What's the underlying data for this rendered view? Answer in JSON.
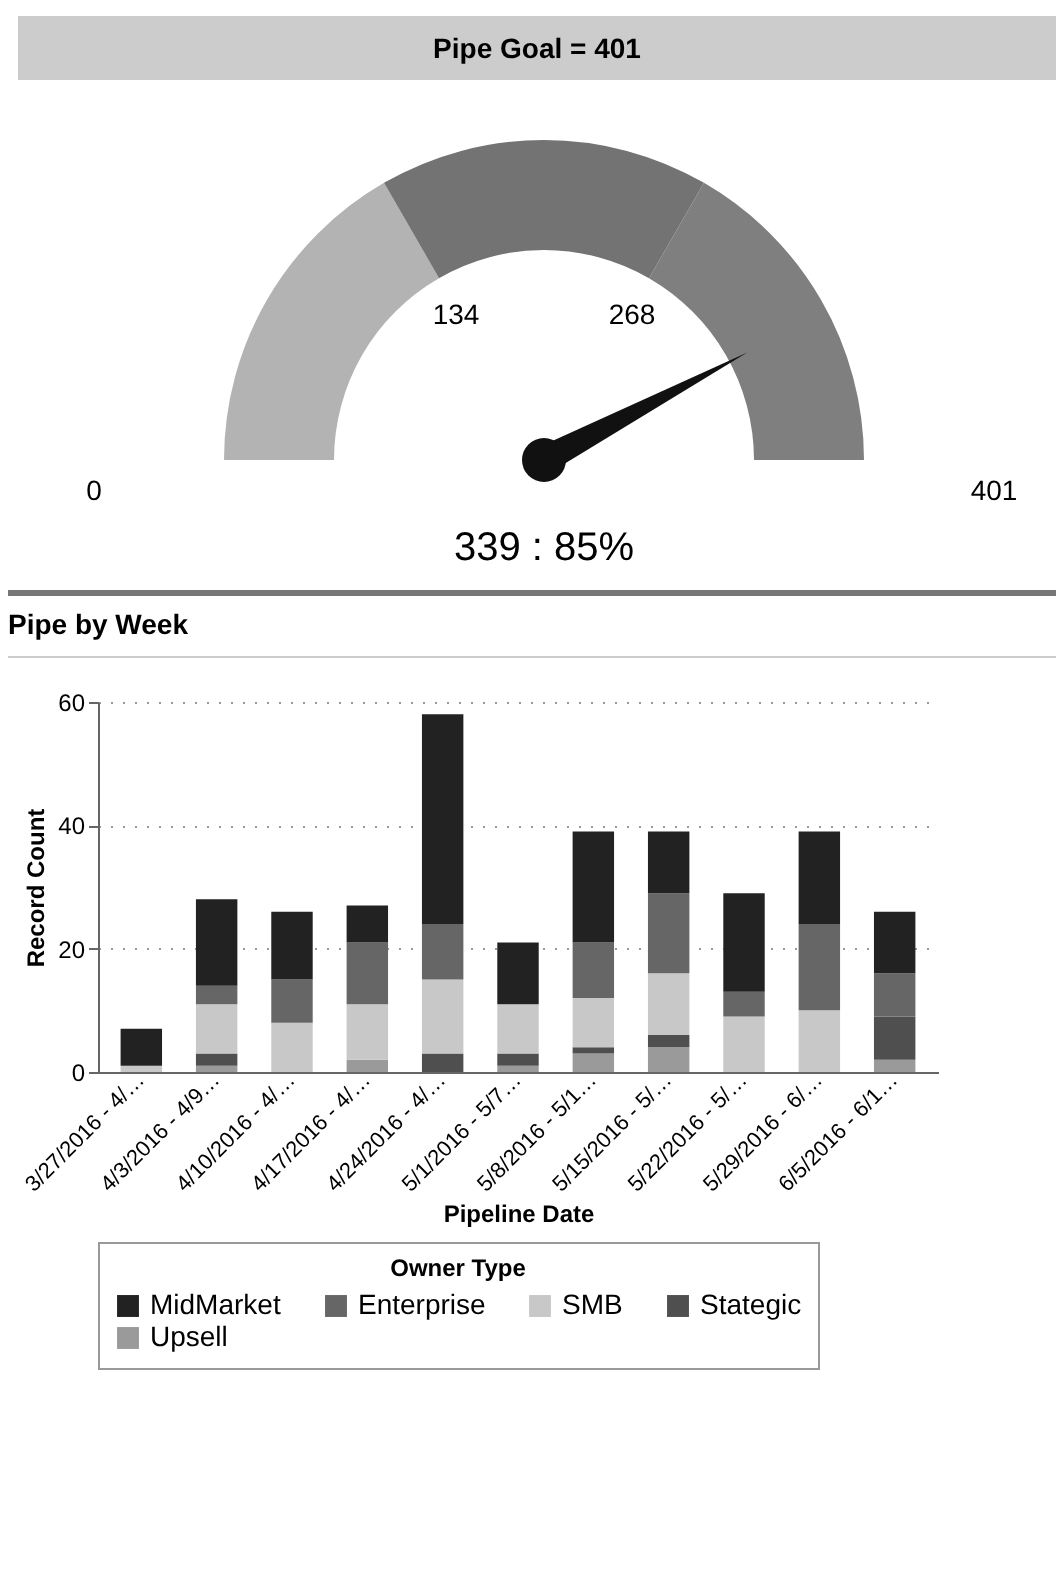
{
  "chart_data": [
    {
      "type": "other",
      "title": "Pipe Goal = 401",
      "annotations": [
        "0",
        "134",
        "268",
        "401",
        "339 : 85%"
      ]
    },
    {
      "type": "bar",
      "title": "Pipe by Week",
      "xlabel": "Pipeline Date",
      "ylabel": "Record Count",
      "legend_title": "Owner Type",
      "categories": [
        "3/27/2016 - 4/…",
        "4/3/2016 - 4/9…",
        "4/10/2016 - 4/…",
        "4/17/2016 - 4/…",
        "4/24/2016 - 4/…",
        "5/1/2016 - 5/7…",
        "5/8/2016 - 5/1…",
        "5/15/2016 - 5/…",
        "5/22/2016 - 5/…",
        "5/29/2016 - 6/…",
        "6/5/2016 - 6/1…"
      ],
      "stacked": true,
      "ylim": [
        0,
        60
      ],
      "yticks": [
        0,
        20,
        40,
        60
      ],
      "grid": "y",
      "legend": "bottom",
      "series": [
        {
          "name": "Upsell",
          "color": "#9a9a9a",
          "values": [
            0,
            1,
            0,
            2,
            0,
            1,
            3,
            4,
            0,
            0,
            2
          ]
        },
        {
          "name": "Stategic",
          "color": "#4f4f4f",
          "values": [
            0,
            2,
            0,
            0,
            3,
            2,
            1,
            2,
            0,
            0,
            7
          ]
        },
        {
          "name": "SMB",
          "color": "#c8c8c8",
          "values": [
            1,
            8,
            8,
            9,
            12,
            8,
            8,
            10,
            9,
            10,
            0
          ]
        },
        {
          "name": "Enterprise",
          "color": "#666666",
          "values": [
            0,
            3,
            7,
            10,
            9,
            0,
            9,
            13,
            4,
            14,
            7
          ]
        },
        {
          "name": "MidMarket",
          "color": "#222222",
          "values": [
            6,
            14,
            11,
            6,
            34,
            10,
            18,
            10,
            16,
            15,
            10
          ]
        }
      ]
    }
  ]
}
